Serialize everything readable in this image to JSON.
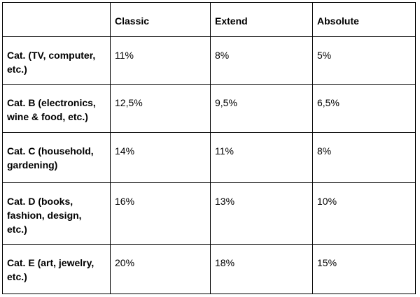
{
  "colors": {
    "background": "#ffffff",
    "border": "#000000",
    "text": "#000000"
  },
  "table": {
    "columns": [
      "",
      "Classic",
      "Extend",
      "Absolute"
    ],
    "rows": [
      {
        "label": "Cat. (TV, computer,\netc.)",
        "values": [
          "11%",
          "8%",
          "5%"
        ]
      },
      {
        "label": "Cat. B (electronics,\nwine & food, etc.)",
        "values": [
          "12,5%",
          "9,5%",
          "6,5%"
        ]
      },
      {
        "label": "Cat. C (household,\ngardening)",
        "values": [
          "14%",
          "11%",
          "8%"
        ]
      },
      {
        "label": "Cat. D (books,\nfashion, design,\netc.)",
        "values": [
          "16%",
          "13%",
          "10%"
        ]
      },
      {
        "label": "Cat. E (art, jewelry,\netc.)",
        "values": [
          "20%",
          "18%",
          "15%"
        ]
      }
    ]
  }
}
